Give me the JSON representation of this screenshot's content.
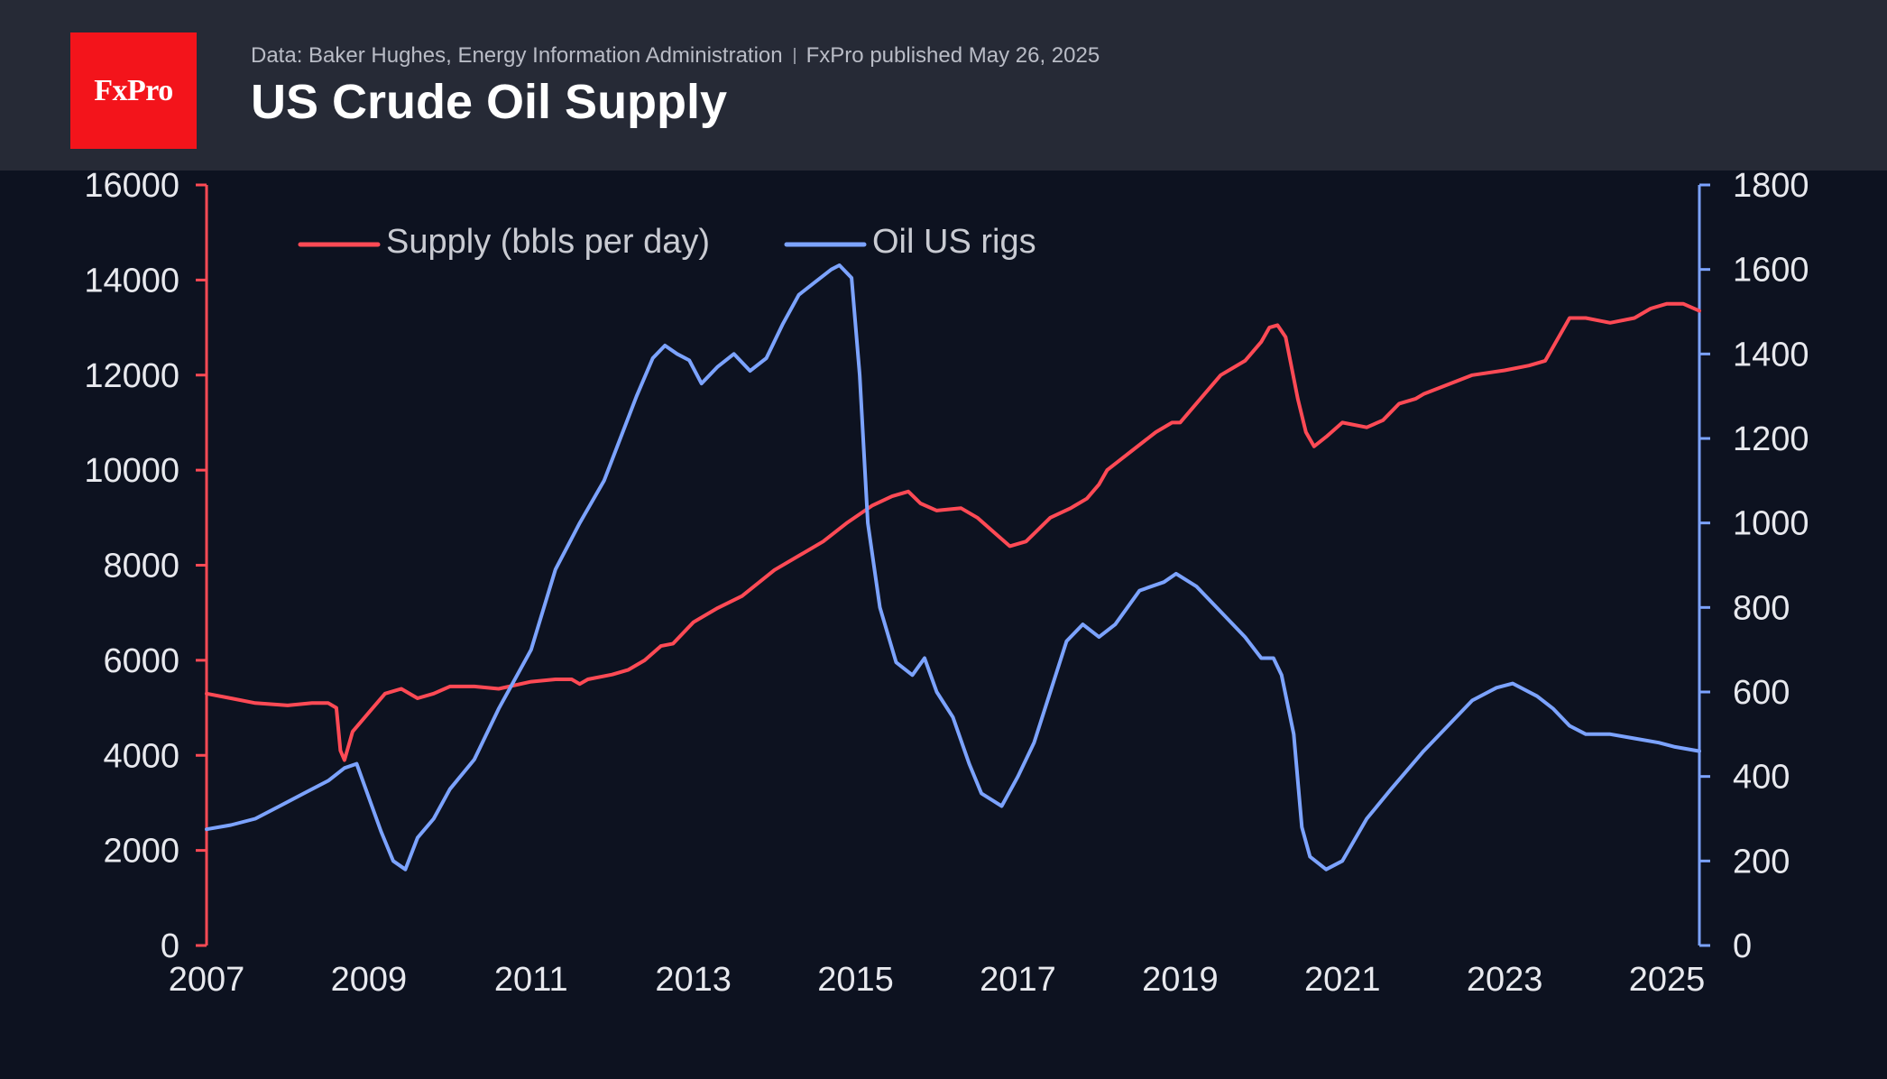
{
  "header": {
    "brand": "FxPro",
    "source": "Data: Baker Hughes, Energy Information Administration",
    "published": "FxPro published May 26, 2025",
    "title": "US Crude Oil Supply"
  },
  "colors": {
    "background": "#0d1220",
    "header_bg": "#262a36",
    "logo_bg": "#f3141b",
    "supply": "#ff4a55",
    "rigs": "#7ca3ff"
  },
  "chart_data": {
    "type": "line",
    "title": "US Crude Oil Supply",
    "x_ticks": [
      "2007",
      "2009",
      "2011",
      "2013",
      "2015",
      "2017",
      "2019",
      "2021",
      "2023",
      "2025"
    ],
    "xlim": [
      2007.0,
      2025.4
    ],
    "y_left": {
      "ticks": [
        "0",
        "2000",
        "4000",
        "6000",
        "8000",
        "10000",
        "12000",
        "14000",
        "16000"
      ],
      "ylim": [
        0,
        16000
      ]
    },
    "y_right": {
      "ticks": [
        "0",
        "200",
        "400",
        "600",
        "800",
        "1000",
        "1200",
        "1400",
        "1600",
        "1800"
      ],
      "ylim": [
        0,
        1800
      ]
    },
    "legend_position": "top-left",
    "grid": false,
    "series": [
      {
        "name": "Supply (bbls per day)",
        "axis": "left",
        "x": [
          2007.0,
          2007.3,
          2007.6,
          2008.0,
          2008.3,
          2008.5,
          2008.6,
          2008.65,
          2008.7,
          2008.8,
          2009.0,
          2009.2,
          2009.4,
          2009.6,
          2009.8,
          2010.0,
          2010.3,
          2010.6,
          2011.0,
          2011.3,
          2011.5,
          2011.6,
          2011.7,
          2012.0,
          2012.2,
          2012.4,
          2012.6,
          2012.75,
          2013.0,
          2013.3,
          2013.6,
          2014.0,
          2014.3,
          2014.6,
          2014.9,
          2015.2,
          2015.45,
          2015.65,
          2015.8,
          2016.0,
          2016.3,
          2016.5,
          2016.7,
          2016.9,
          2017.1,
          2017.4,
          2017.65,
          2017.7,
          2017.75,
          2017.85,
          2018.0,
          2018.1,
          2018.4,
          2018.7,
          2018.9,
          2019.0,
          2019.3,
          2019.5,
          2019.8,
          2020.0,
          2020.1,
          2020.2,
          2020.3,
          2020.45,
          2020.55,
          2020.65,
          2020.8,
          2021.0,
          2021.3,
          2021.5,
          2021.7,
          2021.9,
          2022.0,
          2022.3,
          2022.6,
          2023.0,
          2023.3,
          2023.5,
          2023.6,
          2023.8,
          2024.0,
          2024.3,
          2024.6,
          2024.8,
          2025.0,
          2025.2,
          2025.4
        ],
        "values": [
          5300,
          5200,
          5100,
          5050,
          5100,
          5100,
          5000,
          4100,
          3900,
          4500,
          4900,
          5300,
          5400,
          5200,
          5300,
          5450,
          5450,
          5400,
          5550,
          5600,
          5600,
          5500,
          5600,
          5700,
          5800,
          6000,
          6300,
          6350,
          6800,
          7100,
          7350,
          7900,
          8200,
          8500,
          8900,
          9250,
          9450,
          9550,
          9300,
          9150,
          9200,
          9000,
          8700,
          8400,
          8500,
          9000,
          9200,
          9250,
          9300,
          9400,
          9700,
          10000,
          10400,
          10800,
          11000,
          11000,
          11600,
          12000,
          12300,
          12700,
          13000,
          13050,
          12800,
          11500,
          10800,
          10500,
          10700,
          11000,
          10900,
          11050,
          11400,
          11500,
          11600,
          11800,
          12000,
          12100,
          12200,
          12300,
          12600,
          13200,
          13200,
          13100,
          13200,
          13400,
          13500,
          13500,
          13350
        ]
      },
      {
        "name": "Oil US rigs",
        "axis": "right",
        "x": [
          2007.0,
          2007.3,
          2007.6,
          2007.9,
          2008.2,
          2008.5,
          2008.7,
          2008.85,
          2009.0,
          2009.15,
          2009.3,
          2009.45,
          2009.6,
          2009.8,
          2010.0,
          2010.3,
          2010.6,
          2011.0,
          2011.3,
          2011.6,
          2011.9,
          2012.1,
          2012.3,
          2012.5,
          2012.65,
          2012.8,
          2012.95,
          2013.1,
          2013.3,
          2013.5,
          2013.7,
          2013.9,
          2014.1,
          2014.3,
          2014.5,
          2014.7,
          2014.8,
          2014.95,
          2015.05,
          2015.15,
          2015.3,
          2015.5,
          2015.7,
          2015.85,
          2016.0,
          2016.2,
          2016.4,
          2016.55,
          2016.8,
          2017.0,
          2017.2,
          2017.4,
          2017.6,
          2017.8,
          2018.0,
          2018.2,
          2018.5,
          2018.8,
          2018.95,
          2019.2,
          2019.5,
          2019.8,
          2020.0,
          2020.15,
          2020.25,
          2020.4,
          2020.5,
          2020.6,
          2020.8,
          2021.0,
          2021.3,
          2021.6,
          2022.0,
          2022.3,
          2022.6,
          2022.9,
          2023.1,
          2023.4,
          2023.6,
          2023.8,
          2024.0,
          2024.3,
          2024.6,
          2024.9,
          2025.1,
          2025.4
        ],
        "values": [
          275,
          285,
          300,
          330,
          360,
          390,
          420,
          430,
          350,
          270,
          200,
          180,
          255,
          300,
          370,
          440,
          560,
          700,
          890,
          1000,
          1100,
          1200,
          1300,
          1390,
          1420,
          1400,
          1385,
          1330,
          1370,
          1400,
          1360,
          1390,
          1470,
          1540,
          1570,
          1600,
          1610,
          1580,
          1350,
          1000,
          800,
          670,
          640,
          680,
          600,
          540,
          430,
          360,
          330,
          400,
          480,
          600,
          720,
          760,
          730,
          760,
          840,
          860,
          880,
          850,
          790,
          730,
          680,
          680,
          640,
          500,
          280,
          210,
          180,
          200,
          300,
          370,
          460,
          520,
          580,
          610,
          620,
          590,
          560,
          520,
          500,
          500,
          490,
          480,
          470,
          460
        ]
      }
    ]
  }
}
